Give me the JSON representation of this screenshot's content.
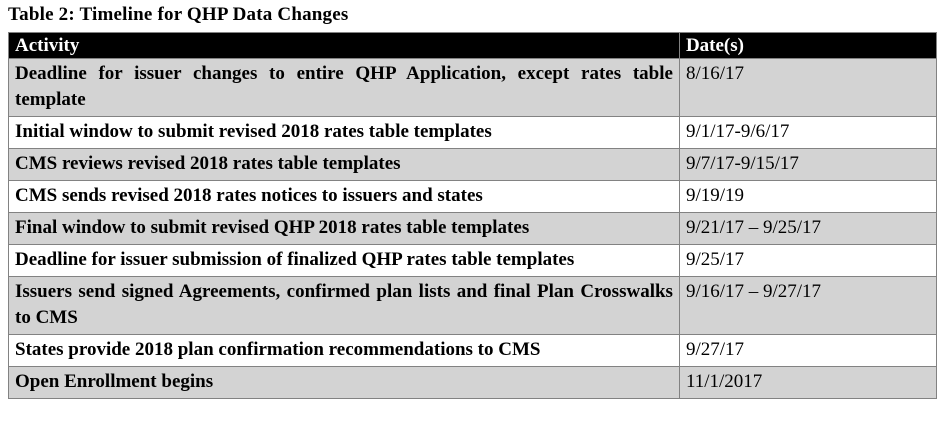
{
  "page": {
    "title": "Table 2: Timeline for QHP Data Changes"
  },
  "table": {
    "header": {
      "activity": "Activity",
      "date": "Date(s)"
    },
    "rows": [
      {
        "activity": "Deadline for issuer changes to entire QHP Application, except rates table template",
        "date": "8/16/17",
        "shaded": true
      },
      {
        "activity": "Initial window to submit revised 2018 rates table templates",
        "date": "9/1/17-9/6/17",
        "shaded": false
      },
      {
        "activity": "CMS reviews revised 2018 rates table templates",
        "date": "9/7/17-9/15/17",
        "shaded": true
      },
      {
        "activity": "CMS sends revised 2018 rates notices to issuers and states",
        "date": "9/19/19",
        "shaded": false
      },
      {
        "activity": "Final window to submit revised QHP 2018 rates table templates",
        "date": "9/21/17 – 9/25/17",
        "shaded": true
      },
      {
        "activity": "Deadline for issuer submission of finalized QHP rates table templates",
        "date": "9/25/17",
        "shaded": false
      },
      {
        "activity": "Issuers send signed Agreements, confirmed plan lists and final Plan Crosswalks to CMS",
        "date": "9/16/17 – 9/27/17",
        "shaded": true
      },
      {
        "activity": "States provide 2018 plan confirmation recommendations to CMS",
        "date": "9/27/17",
        "shaded": false
      },
      {
        "activity": "Open Enrollment begins",
        "date": "11/1/2017",
        "shaded": true
      }
    ]
  },
  "colors": {
    "header_bg": "#000000",
    "header_text": "#ffffff",
    "shaded_row_bg": "#d3d3d3",
    "row_bg": "#ffffff",
    "border": "#828282",
    "text": "#000000"
  }
}
